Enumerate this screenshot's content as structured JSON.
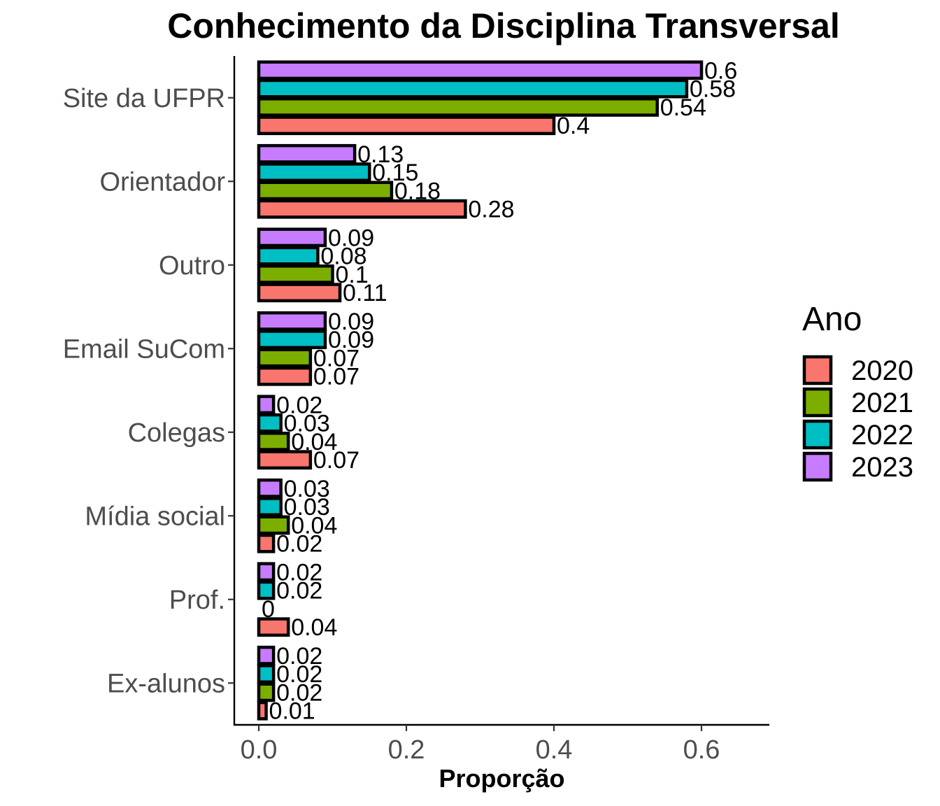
{
  "chart_data": {
    "type": "bar",
    "orientation": "horizontal",
    "title": "Conhecimento da Disciplina Transversal",
    "xlabel": "Proporção",
    "ylabel": "",
    "xlim": [
      -0.06,
      0.69
    ],
    "xticks": [
      0.0,
      0.2,
      0.4,
      0.6
    ],
    "xtick_labels": [
      "0.0",
      "0.2",
      "0.4",
      "0.6"
    ],
    "grid": false,
    "categories": [
      "Site da UFPR",
      "Orientador",
      "Outro",
      "Email SuCom",
      "Colegas",
      "Mídia social",
      "Prof.",
      "Ex-alunos"
    ],
    "legend": {
      "title": "Ano",
      "position": "right"
    },
    "series": [
      {
        "name": "2020",
        "color": "#F8766D",
        "values": [
          0.4,
          0.28,
          0.11,
          0.07,
          0.07,
          0.02,
          0.04,
          0.01
        ],
        "labels": [
          "0.4",
          "0.28",
          "0.11",
          "0.07",
          "0.07",
          "0.02",
          "0.04",
          "0.01"
        ]
      },
      {
        "name": "2021",
        "color": "#7CAE00",
        "values": [
          0.54,
          0.18,
          0.1,
          0.07,
          0.04,
          0.04,
          0,
          0.02
        ],
        "labels": [
          "0.54",
          "0.18",
          "0.1",
          "0.07",
          "0.04",
          "0.04",
          "0",
          "0.02"
        ]
      },
      {
        "name": "2022",
        "color": "#00BFC4",
        "values": [
          0.58,
          0.15,
          0.08,
          0.09,
          0.03,
          0.03,
          0.02,
          0.02
        ],
        "labels": [
          "0.58",
          "0.15",
          "0.08",
          "0.09",
          "0.03",
          "0.03",
          "0.02",
          "0.02"
        ]
      },
      {
        "name": "2023",
        "color": "#C77CFF",
        "values": [
          0.6,
          0.13,
          0.09,
          0.09,
          0.02,
          0.03,
          0.02,
          0.02
        ],
        "labels": [
          "0.6",
          "0.13",
          "0.09",
          "0.09",
          "0.02",
          "0.03",
          "0.02",
          "0.02"
        ]
      }
    ]
  }
}
